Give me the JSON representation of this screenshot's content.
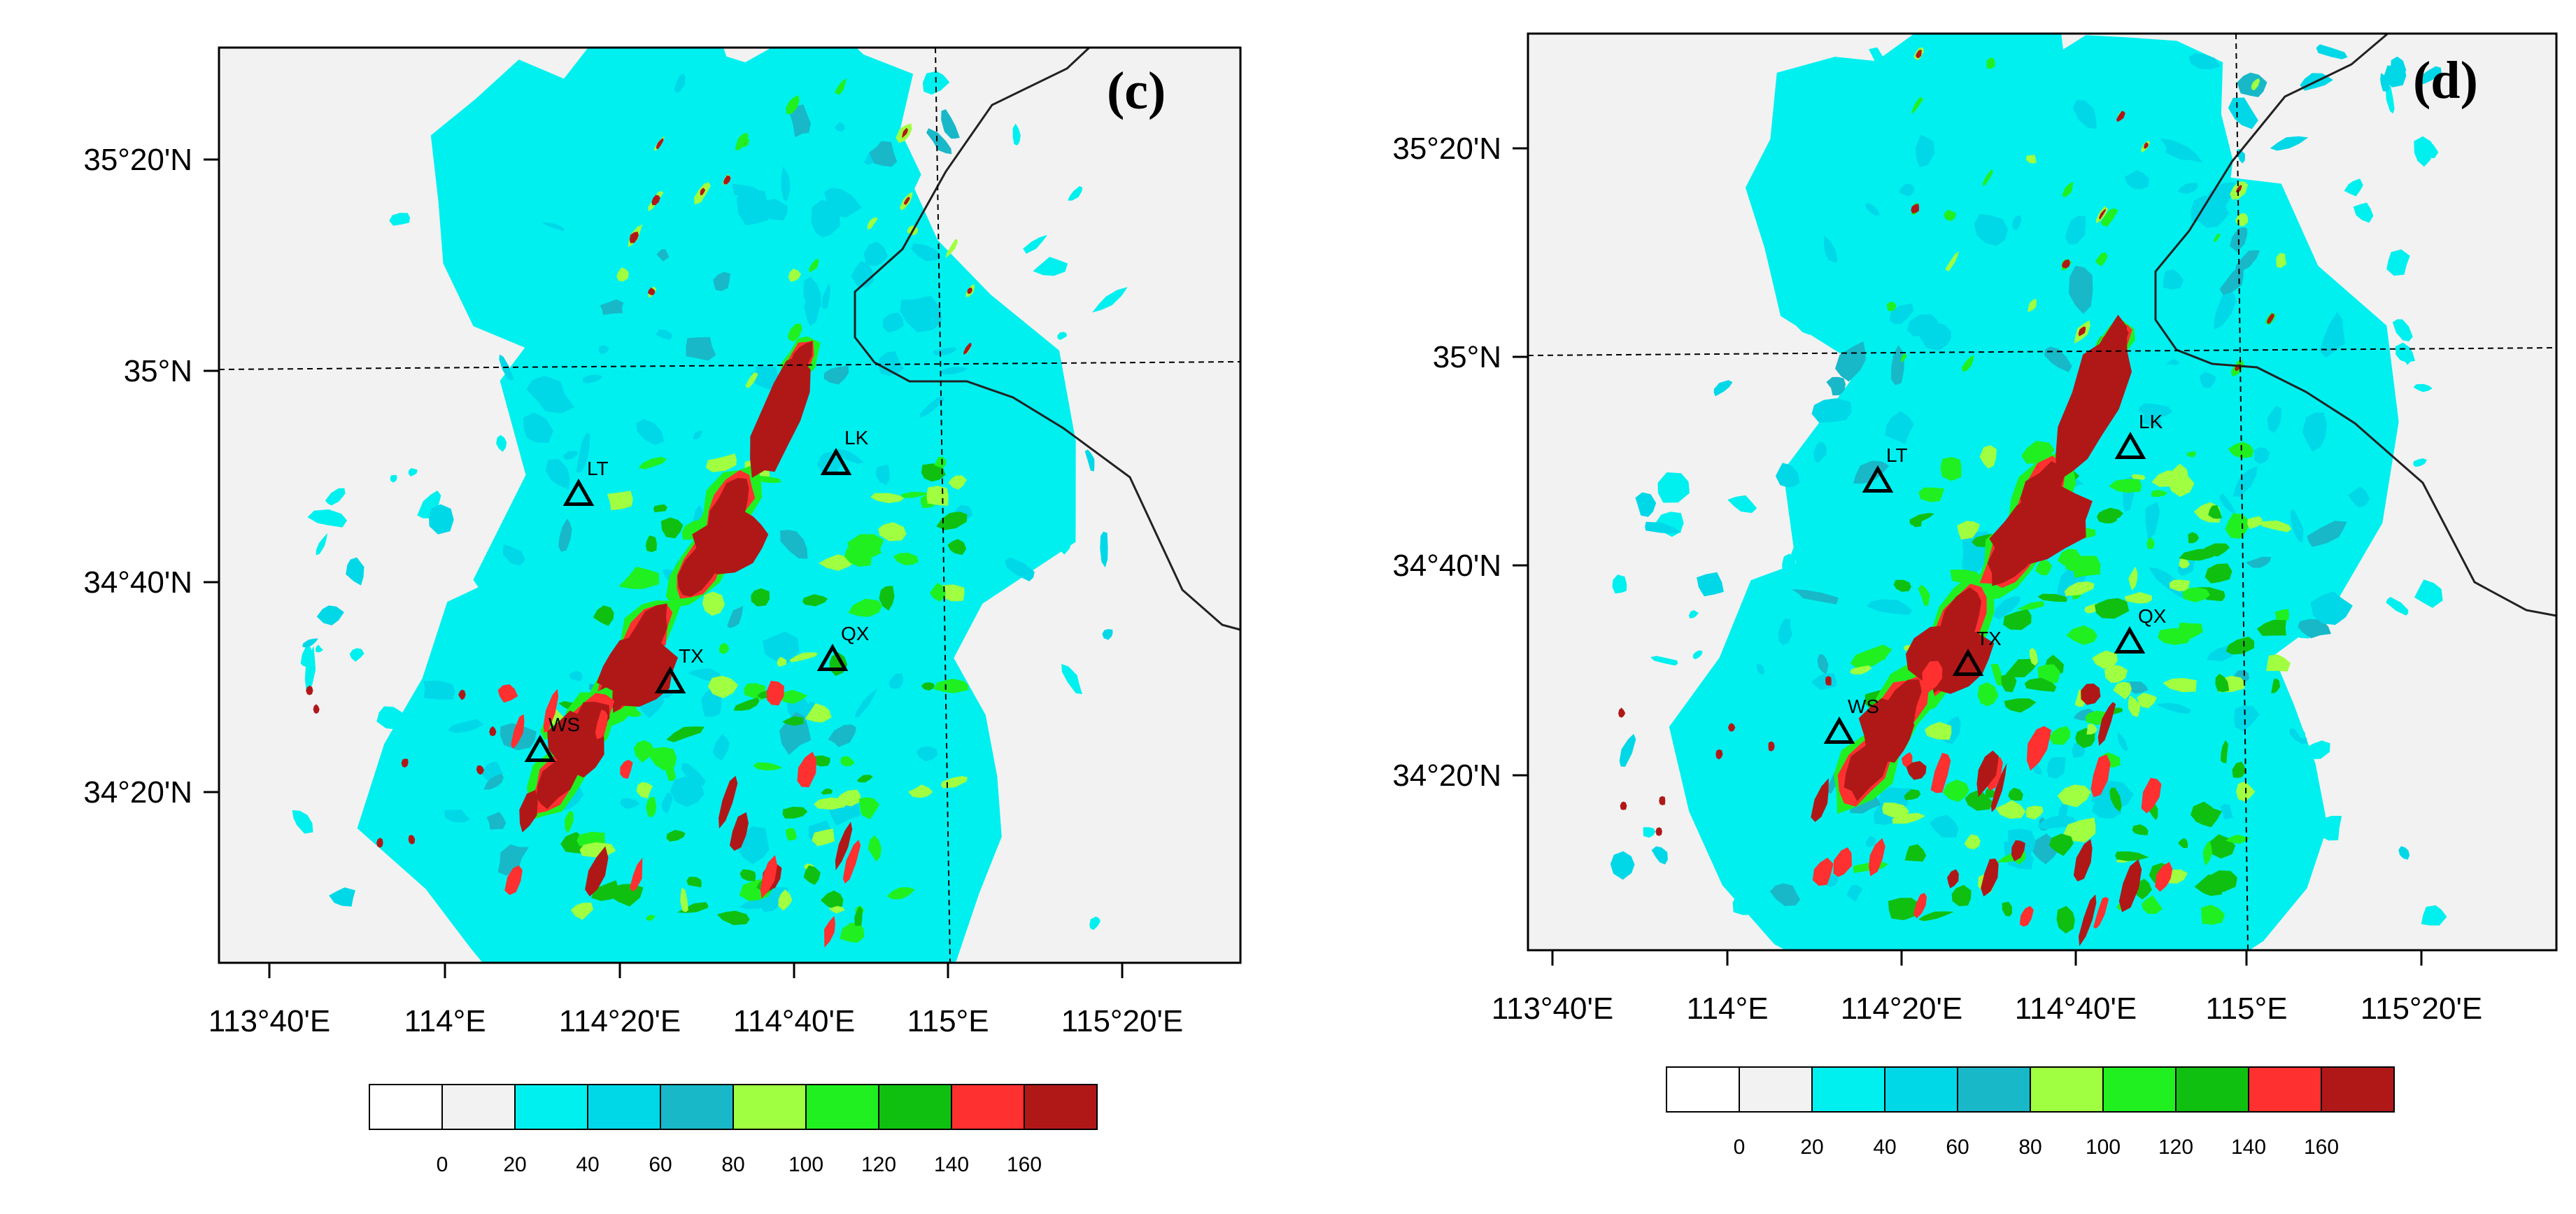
{
  "colors": {
    "background": "#f2f2f2",
    "scale": [
      "#ffffff",
      "#f2f2f2",
      "#00f0f0",
      "#00d8e8",
      "#18b8c8",
      "#a0ff40",
      "#20f020",
      "#10c010",
      "#ff3030",
      "#b01818"
    ],
    "coast": "#222222"
  },
  "axes": {
    "x_ticks": [
      "113°40'E",
      "114°E",
      "114°20'E",
      "114°40'E",
      "115°E",
      "115°20'E"
    ],
    "y_ticks": [
      "35°20'N",
      "35°N",
      "34°40'N",
      "34°20'N"
    ]
  },
  "colorbar": {
    "labels": [
      "0",
      "20",
      "40",
      "60",
      "80",
      "100",
      "120",
      "140",
      "160"
    ]
  },
  "stations": [
    "LT",
    "LK",
    "TX",
    "QX",
    "WS"
  ],
  "panels": [
    {
      "id": "c",
      "label": "(c)"
    },
    {
      "id": "d",
      "label": "(d)"
    }
  ]
}
